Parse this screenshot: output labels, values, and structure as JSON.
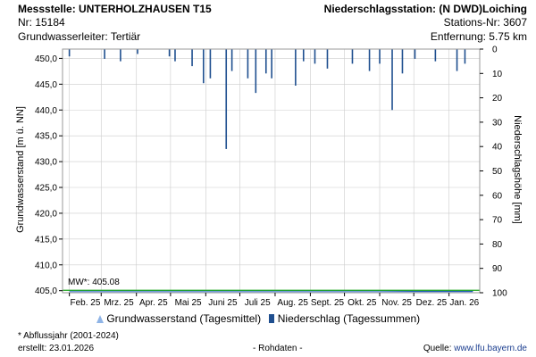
{
  "header": {
    "station_title": "Messstelle: UNTERHOLZHAUSEN T15",
    "nr": "Nr: 15184",
    "aquifer": "Grundwasserleiter: Tertiär",
    "precip_station": "Niederschlagsstation: (N DWD)Loiching",
    "precip_nr": "Stations-Nr: 3607",
    "distance": "Entfernung: 5.75 km"
  },
  "legend": {
    "gw_label": "Grundwasserstand (Tagesmittel)",
    "precip_label": "Niederschlag (Tagessummen)"
  },
  "footer": {
    "note": "* Abflussjahr (2001-2024)",
    "created": "erstellt:  23.01.2026",
    "raw": "- Rohdaten -",
    "source_prefix": "Quelle: ",
    "source_link": "www.lfu.bayern.de"
  },
  "chart_data": {
    "type": "line",
    "ylabel": "Grundwasserstand [m ü. NN]",
    "y2label": "Niederschlagshöhe [mm]",
    "ylim": [
      404.6,
      451.8
    ],
    "y_ticks": [
      "405,0",
      "410,0",
      "415,0",
      "420,0",
      "425,0",
      "430,0",
      "435,0",
      "440,0",
      "445,0",
      "450,0"
    ],
    "y_tick_values": [
      405,
      410,
      415,
      420,
      425,
      430,
      435,
      440,
      445,
      450
    ],
    "y2lim": [
      100,
      0
    ],
    "y2_ticks": [
      "0",
      "10",
      "20",
      "30",
      "40",
      "50",
      "60",
      "70",
      "80",
      "90",
      "100"
    ],
    "x_ticks": [
      "Feb. 25",
      "Mrz. 25",
      "Apr. 25",
      "Mai 25",
      "Juni 25",
      "Juli 25",
      "Aug. 25",
      "Sept. 25",
      "Okt. 25",
      "Nov. 25",
      "Dez. 25",
      "Jan. 26"
    ],
    "mw_label": "MW*: 405.08",
    "mw_value": 405.08,
    "colors": {
      "groundwater_fill": "#8fb4e6",
      "groundwater_line": "#1a56b0",
      "precip": "#1f4f8f",
      "mw_line": "#22aa22",
      "grid": "#cccccc"
    },
    "series": [
      {
        "name": "Grundwasserstand (Tagesmittel)",
        "x": [
          "2025-02-01",
          "2025-03-01",
          "2025-04-01",
          "2025-05-01",
          "2025-06-01",
          "2025-07-01",
          "2025-08-01",
          "2025-09-01",
          "2025-10-01",
          "2025-11-01",
          "2025-12-01",
          "2026-01-01",
          "2026-01-22"
        ],
        "values": [
          405.0,
          405.0,
          405.0,
          405.0,
          405.0,
          405.0,
          405.0,
          405.0,
          405.0,
          405.0,
          404.9,
          404.9,
          404.9
        ]
      },
      {
        "name": "Niederschlag (Tagessummen)",
        "x": [
          "2025-02-01",
          "2025-03-04",
          "2025-03-18",
          "2025-04-02",
          "2025-04-30",
          "2025-05-05",
          "2025-05-20",
          "2025-05-30",
          "2025-06-05",
          "2025-06-19",
          "2025-06-24",
          "2025-07-08",
          "2025-07-15",
          "2025-07-24",
          "2025-07-29",
          "2025-08-19",
          "2025-08-26",
          "2025-09-05",
          "2025-09-16",
          "2025-10-08",
          "2025-10-23",
          "2025-11-01",
          "2025-11-12",
          "2025-11-21",
          "2025-12-02",
          "2025-12-20",
          "2026-01-08",
          "2026-01-15"
        ],
        "values": [
          3.0,
          4.0,
          5.0,
          2.0,
          3.0,
          5.0,
          7.0,
          14.0,
          12.0,
          41.0,
          9.0,
          12.0,
          18.0,
          10.0,
          12.0,
          15.0,
          5.0,
          6.0,
          8.0,
          6.0,
          9.0,
          6.0,
          25.0,
          10.0,
          4.0,
          5.0,
          9.0,
          6.0
        ]
      }
    ]
  }
}
